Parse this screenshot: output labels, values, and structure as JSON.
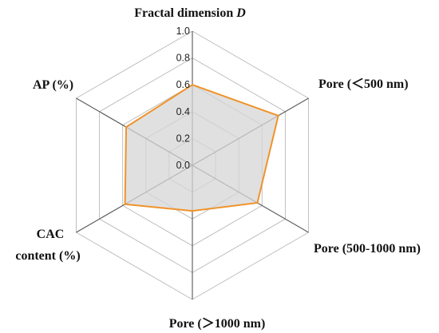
{
  "chart_data": {
    "type": "radar",
    "axes": [
      {
        "label": "Fractal dimension ",
        "label_italic": "D"
      },
      {
        "label": "Pore (＜500 nm)"
      },
      {
        "label": "Pore (500-1000 nm)"
      },
      {
        "label": "Pore (＞1000 nm)"
      },
      {
        "label_lines": [
          "CAC",
          "content (%)"
        ]
      },
      {
        "label": "AP (%)"
      }
    ],
    "ticks": [
      "0.0",
      "0.2",
      "0.4",
      "0.6",
      "0.8",
      "1.0"
    ],
    "range": [
      0,
      1
    ],
    "series": [
      {
        "values": [
          0.6,
          0.74,
          0.56,
          0.34,
          0.58,
          0.57
        ]
      }
    ],
    "colors": {
      "line": "#f0932b",
      "fill": "#d6d6d6",
      "grid": "#b9b9b9",
      "spoke": "#555555"
    }
  }
}
